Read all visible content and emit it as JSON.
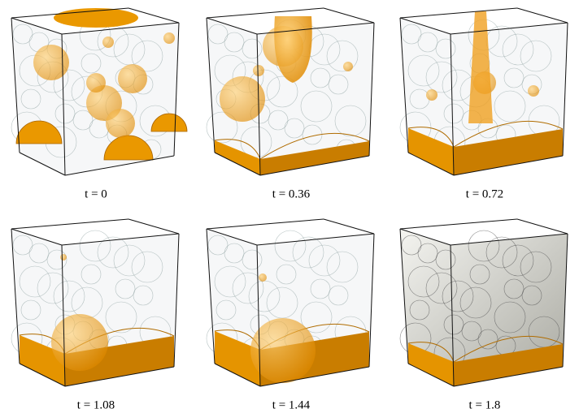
{
  "panels": [
    {
      "caption": "t = 0"
    },
    {
      "caption": "t = 0.36"
    },
    {
      "caption": "t = 0.72"
    },
    {
      "caption": "t = 1.08"
    },
    {
      "caption": "t = 1.44"
    },
    {
      "caption": "t = 1.8"
    }
  ]
}
